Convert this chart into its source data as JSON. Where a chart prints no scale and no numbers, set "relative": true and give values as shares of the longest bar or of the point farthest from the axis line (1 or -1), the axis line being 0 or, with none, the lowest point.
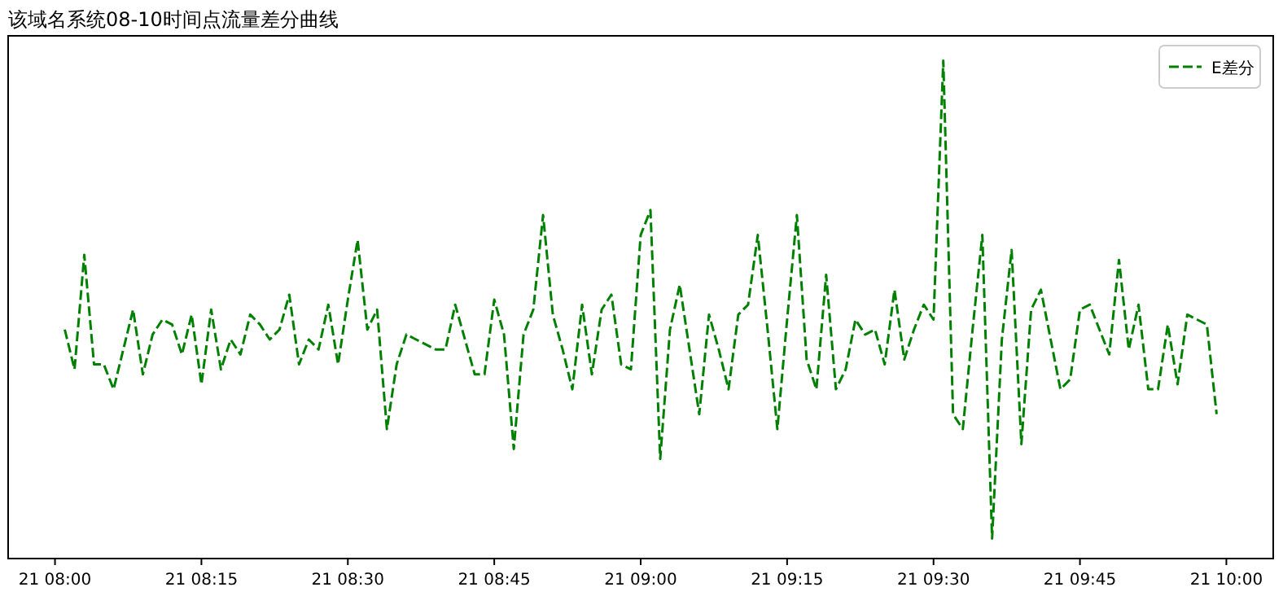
{
  "chart_data": {
    "type": "line",
    "title": "该域名系统08-10时间点流量差分曲线",
    "relative": true,
    "legend": "top right",
    "line_style": "dashed",
    "categories": [
      "21 08:00",
      null,
      null,
      null,
      null,
      null,
      null,
      null,
      null,
      null,
      null,
      null,
      null,
      null,
      null,
      "21 08:15",
      null,
      null,
      null,
      null,
      null,
      null,
      null,
      null,
      null,
      null,
      null,
      null,
      null,
      null,
      "21 08:30",
      null,
      null,
      null,
      null,
      null,
      null,
      null,
      null,
      null,
      null,
      null,
      null,
      null,
      null,
      "21 08:45",
      null,
      null,
      null,
      null,
      null,
      null,
      null,
      null,
      null,
      null,
      null,
      null,
      null,
      null,
      "21 09:00",
      null,
      null,
      null,
      null,
      null,
      null,
      null,
      null,
      null,
      null,
      null,
      null,
      null,
      null,
      "21 09:15",
      null,
      null,
      null,
      null,
      null,
      null,
      null,
      null,
      null,
      null,
      null,
      null,
      null,
      null,
      "21 09:30",
      null,
      null,
      null,
      null,
      null,
      null,
      null,
      null,
      null,
      null,
      null,
      null,
      null,
      null,
      "21 09:45",
      null,
      null,
      null,
      null,
      null,
      null,
      null,
      null,
      null,
      null,
      null,
      null,
      null,
      null,
      "21 10:00"
    ],
    "series": [
      {
        "name": "E差分",
        "color": "#008000",
        "values": [
          null,
          0.46,
          0.38,
          0.61,
          0.39,
          0.39,
          0.34,
          0.42,
          0.5,
          0.37,
          0.45,
          0.48,
          0.47,
          0.41,
          0.49,
          0.35,
          0.5,
          0.38,
          0.44,
          0.41,
          0.49,
          0.47,
          0.44,
          0.46,
          0.53,
          0.39,
          0.44,
          0.42,
          0.51,
          0.39,
          0.52,
          0.64,
          0.46,
          0.5,
          0.26,
          0.39,
          0.45,
          0.44,
          0.43,
          0.42,
          0.42,
          0.51,
          0.44,
          0.37,
          0.37,
          0.52,
          0.45,
          0.22,
          0.45,
          0.5,
          0.69,
          0.49,
          0.42,
          0.34,
          0.51,
          0.37,
          0.5,
          0.53,
          0.39,
          0.38,
          0.65,
          0.7,
          0.2,
          0.46,
          0.55,
          0.42,
          0.29,
          0.49,
          0.42,
          0.34,
          0.49,
          0.51,
          0.65,
          0.46,
          0.26,
          0.48,
          0.69,
          0.4,
          0.34,
          0.57,
          0.34,
          0.38,
          0.48,
          0.45,
          0.46,
          0.39,
          0.54,
          0.4,
          0.46,
          0.51,
          0.48,
          1,
          0.29,
          0.26,
          0.46,
          0.65,
          0.04,
          0.44,
          0.62,
          0.23,
          0.5,
          0.54,
          0.44,
          0.34,
          0.36,
          0.5,
          0.51,
          0.46,
          0.41,
          0.6,
          0.42,
          0.51,
          0.34,
          0.34,
          0.47,
          0.35,
          0.49,
          0.48,
          0.47,
          0.29,
          null
        ]
      }
    ]
  }
}
